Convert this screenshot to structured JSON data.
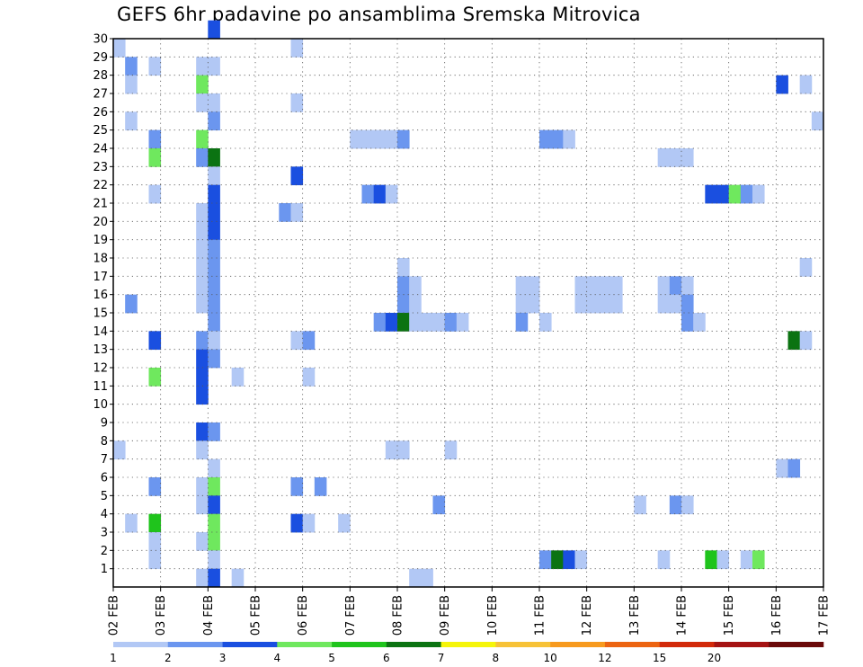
{
  "chart_data": {
    "type": "heatmap",
    "title": "GEFS 6hr padavine po ansamblima Sremska Mitrovica",
    "x_tick_labels": [
      "02 FEB",
      "03 FEB",
      "04 FEB",
      "05 FEB",
      "06 FEB",
      "07 FEB",
      "08 FEB",
      "09 FEB",
      "10 FEB",
      "11 FEB",
      "12 FEB",
      "13 FEB",
      "14 FEB",
      "15 FEB",
      "16 FEB",
      "17 FEB"
    ],
    "y_tick_labels": [
      "1",
      "2",
      "3",
      "4",
      "5",
      "6",
      "7",
      "8",
      "9",
      "10",
      "11",
      "12",
      "13",
      "14",
      "15",
      "16",
      "17",
      "18",
      "19",
      "20",
      "21",
      "22",
      "23",
      "24",
      "25",
      "26",
      "27",
      "28",
      "29",
      "30"
    ],
    "x_unit": "6-hour step from 02 FEB 00Z",
    "x_range": [
      0,
      60
    ],
    "y_range": [
      0,
      30
    ],
    "grid": true,
    "colorbar": {
      "labels": [
        "1",
        "2",
        "3",
        "4",
        "5",
        "6",
        "7",
        "8",
        "10",
        "12",
        "15",
        "20"
      ],
      "colors": [
        "#b2c8f5",
        "#6b96ef",
        "#1a4fe0",
        "#6fe85e",
        "#1fc41c",
        "#0b7312",
        "#f5f50a",
        "#f7c237",
        "#f79a1e",
        "#ec6411",
        "#d22a0a",
        "#a51313",
        "#6b0a0a"
      ]
    },
    "cells": [
      [
        0,
        29,
        1
      ],
      [
        8,
        30,
        3
      ],
      [
        15,
        29,
        1
      ],
      [
        1,
        28,
        2
      ],
      [
        3,
        28,
        1
      ],
      [
        7,
        28,
        1
      ],
      [
        8,
        28,
        1
      ],
      [
        1,
        27,
        1
      ],
      [
        7,
        27,
        4
      ],
      [
        56,
        27,
        3
      ],
      [
        58,
        27,
        1
      ],
      [
        7,
        26,
        1
      ],
      [
        8,
        26,
        1
      ],
      [
        15,
        26,
        1
      ],
      [
        1,
        25,
        1
      ],
      [
        8,
        25,
        2
      ],
      [
        59,
        25,
        1
      ],
      [
        3,
        24,
        2
      ],
      [
        7,
        24,
        4
      ],
      [
        20,
        24,
        1
      ],
      [
        21,
        24,
        1
      ],
      [
        22,
        24,
        1
      ],
      [
        23,
        24,
        1
      ],
      [
        24,
        24,
        2
      ],
      [
        36,
        24,
        2
      ],
      [
        37,
        24,
        2
      ],
      [
        38,
        24,
        1
      ],
      [
        3,
        23,
        4
      ],
      [
        7,
        23,
        2
      ],
      [
        8,
        23,
        6
      ],
      [
        46,
        23,
        1
      ],
      [
        47,
        23,
        1
      ],
      [
        48,
        23,
        1
      ],
      [
        8,
        22,
        1
      ],
      [
        15,
        22,
        3
      ],
      [
        3,
        21,
        1
      ],
      [
        8,
        21,
        3
      ],
      [
        21,
        21,
        2
      ],
      [
        22,
        21,
        3
      ],
      [
        23,
        21,
        1
      ],
      [
        50,
        21,
        3
      ],
      [
        51,
        21,
        3
      ],
      [
        52,
        21,
        4
      ],
      [
        53,
        21,
        2
      ],
      [
        54,
        21,
        1
      ],
      [
        7,
        20,
        1
      ],
      [
        8,
        20,
        3
      ],
      [
        14,
        20,
        2
      ],
      [
        15,
        20,
        1
      ],
      [
        7,
        19,
        1
      ],
      [
        8,
        19,
        3
      ],
      [
        7,
        18,
        1
      ],
      [
        8,
        18,
        2
      ],
      [
        7,
        17,
        1
      ],
      [
        8,
        17,
        2
      ],
      [
        24,
        17,
        1
      ],
      [
        58,
        17,
        1
      ],
      [
        7,
        16,
        1
      ],
      [
        8,
        16,
        2
      ],
      [
        24,
        16,
        2
      ],
      [
        25,
        16,
        1
      ],
      [
        34,
        16,
        1
      ],
      [
        35,
        16,
        1
      ],
      [
        39,
        16,
        1
      ],
      [
        40,
        16,
        1
      ],
      [
        41,
        16,
        1
      ],
      [
        42,
        16,
        1
      ],
      [
        46,
        16,
        1
      ],
      [
        47,
        16,
        2
      ],
      [
        48,
        16,
        1
      ],
      [
        1,
        15,
        2
      ],
      [
        7,
        15,
        1
      ],
      [
        8,
        15,
        2
      ],
      [
        24,
        15,
        2
      ],
      [
        25,
        15,
        1
      ],
      [
        34,
        15,
        1
      ],
      [
        35,
        15,
        1
      ],
      [
        39,
        15,
        1
      ],
      [
        40,
        15,
        1
      ],
      [
        41,
        15,
        1
      ],
      [
        42,
        15,
        1
      ],
      [
        46,
        15,
        1
      ],
      [
        47,
        15,
        1
      ],
      [
        48,
        15,
        2
      ],
      [
        8,
        14,
        2
      ],
      [
        22,
        14,
        2
      ],
      [
        23,
        14,
        3
      ],
      [
        24,
        14,
        6
      ],
      [
        25,
        14,
        1
      ],
      [
        26,
        14,
        1
      ],
      [
        27,
        14,
        1
      ],
      [
        28,
        14,
        2
      ],
      [
        29,
        14,
        1
      ],
      [
        34,
        14,
        2
      ],
      [
        36,
        14,
        1
      ],
      [
        48,
        14,
        2
      ],
      [
        49,
        14,
        1
      ],
      [
        3,
        13,
        3
      ],
      [
        7,
        13,
        2
      ],
      [
        8,
        13,
        1
      ],
      [
        15,
        13,
        1
      ],
      [
        16,
        13,
        2
      ],
      [
        57,
        13,
        6
      ],
      [
        58,
        13,
        1
      ],
      [
        7,
        12,
        3
      ],
      [
        8,
        12,
        2
      ],
      [
        7,
        11,
        3
      ],
      [
        10,
        11,
        1
      ],
      [
        16,
        11,
        1
      ],
      [
        3,
        11,
        4
      ],
      [
        7,
        10,
        3
      ],
      [
        7,
        8,
        3
      ],
      [
        8,
        8,
        2
      ],
      [
        0,
        7,
        1
      ],
      [
        7,
        7,
        1
      ],
      [
        23,
        7,
        1
      ],
      [
        24,
        7,
        1
      ],
      [
        28,
        7,
        1
      ],
      [
        8,
        6,
        1
      ],
      [
        56,
        6,
        1
      ],
      [
        57,
        6,
        2
      ],
      [
        3,
        5,
        2
      ],
      [
        7,
        5,
        1
      ],
      [
        8,
        5,
        4
      ],
      [
        15,
        5,
        2
      ],
      [
        17,
        5,
        2
      ],
      [
        7,
        4,
        1
      ],
      [
        8,
        4,
        3
      ],
      [
        27,
        4,
        2
      ],
      [
        44,
        4,
        1
      ],
      [
        47,
        4,
        2
      ],
      [
        48,
        4,
        1
      ],
      [
        1,
        3,
        1
      ],
      [
        3,
        3,
        5
      ],
      [
        8,
        3,
        4
      ],
      [
        15,
        3,
        3
      ],
      [
        16,
        3,
        1
      ],
      [
        19,
        3,
        1
      ],
      [
        3,
        2,
        1
      ],
      [
        7,
        2,
        1
      ],
      [
        8,
        2,
        4
      ],
      [
        3,
        1,
        1
      ],
      [
        8,
        1,
        1
      ],
      [
        36,
        1,
        2
      ],
      [
        37,
        1,
        6
      ],
      [
        38,
        1,
        3
      ],
      [
        39,
        1,
        1
      ],
      [
        46,
        1,
        1
      ],
      [
        50,
        1,
        5
      ],
      [
        51,
        1,
        1
      ],
      [
        53,
        1,
        1
      ],
      [
        54,
        1,
        4
      ],
      [
        7,
        0,
        1
      ],
      [
        8,
        0,
        3
      ],
      [
        10,
        0,
        1
      ],
      [
        25,
        0,
        1
      ],
      [
        26,
        0,
        1
      ]
    ]
  }
}
